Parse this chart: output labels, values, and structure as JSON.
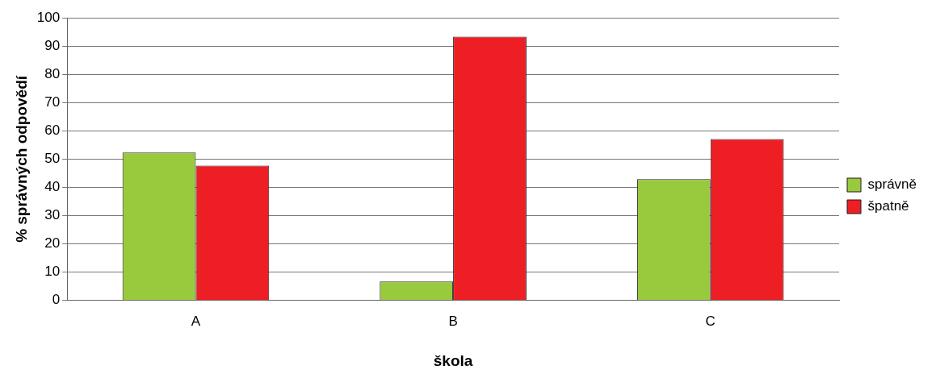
{
  "chart_data": {
    "type": "bar",
    "xlabel": "škola",
    "ylabel": "% správných odpovědí",
    "categories": [
      "A",
      "B",
      "C"
    ],
    "series": [
      {
        "name": "správně",
        "color": "#99c93d",
        "values": [
          52.3,
          6.7,
          42.9
        ]
      },
      {
        "name": "špatně",
        "color": "#ed1f24",
        "values": [
          47.7,
          93.3,
          57.1
        ]
      }
    ],
    "ylim": [
      0,
      100
    ],
    "yticks": [
      0,
      10,
      20,
      30,
      40,
      50,
      60,
      70,
      80,
      90,
      100
    ],
    "grid": "y",
    "legend": "right"
  }
}
